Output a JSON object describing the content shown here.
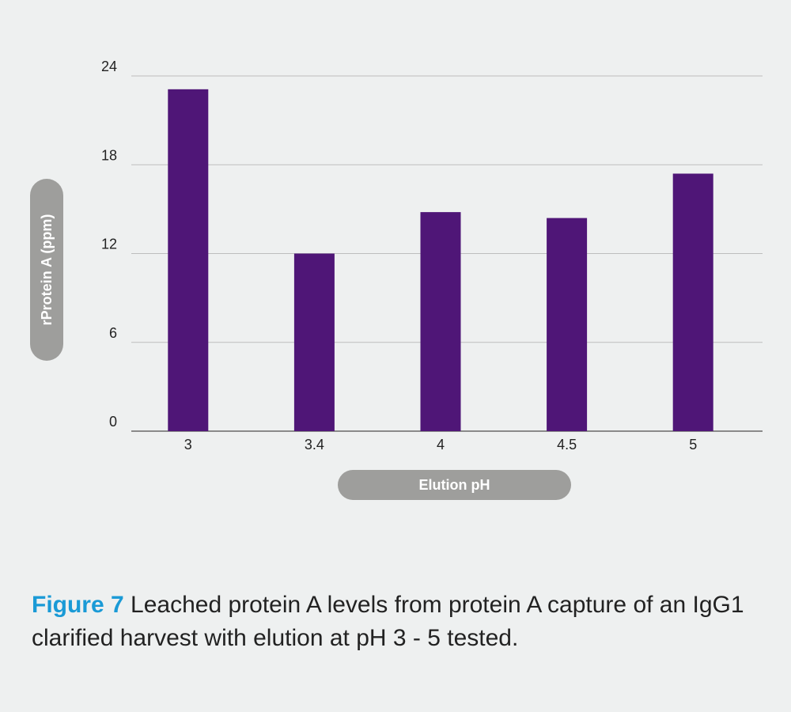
{
  "chart_data": {
    "type": "bar",
    "categories": [
      "3",
      "3.4",
      "4",
      "4.5",
      "5"
    ],
    "values": [
      23.1,
      12.0,
      14.8,
      14.4,
      17.4
    ],
    "xlabel": "Elution pH",
    "ylabel": "rProtein A (ppm)",
    "ylim": [
      0,
      24
    ],
    "yticks": [
      0,
      6,
      12,
      18,
      24
    ],
    "grid": true,
    "bar_color": "#4f1677",
    "grid_color": "#bdbdbd",
    "pill_color": "#9e9e9c"
  },
  "caption": {
    "label": "Figure 7",
    "text": " Leached protein A levels from protein A capture of an IgG1 clarified harvest with elution at pH 3 - 5 tested."
  }
}
